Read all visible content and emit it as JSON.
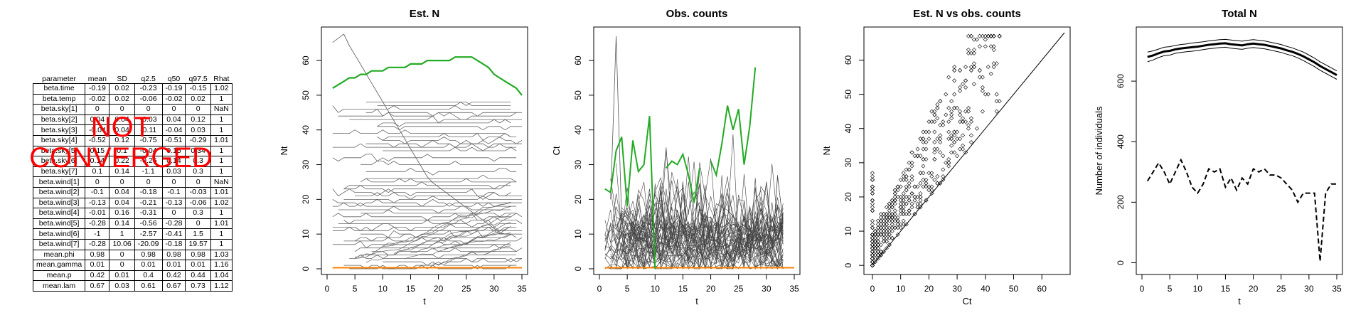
{
  "table": {
    "headers": [
      "parameter",
      "mean",
      "SD",
      "q2.5",
      "q50",
      "q97.5",
      "Rhat"
    ],
    "rows": [
      [
        "beta.time",
        "-0.19",
        "0.02",
        "-0.23",
        "-0.19",
        "-0.15",
        "1.02"
      ],
      [
        "beta.temp",
        "-0.02",
        "0.02",
        "-0.06",
        "-0.02",
        "0.02",
        "1"
      ],
      [
        "beta.sky[1]",
        "0",
        "0",
        "0",
        "0",
        "0",
        "NaN"
      ],
      [
        "beta.sky[2]",
        "0.04",
        "0.04",
        "-0.03",
        "0.04",
        "0.12",
        "1"
      ],
      [
        "beta.sky[3]",
        "-0.04",
        "0.04",
        "-0.11",
        "-0.04",
        "0.03",
        "1"
      ],
      [
        "beta.sky[4]",
        "-0.52",
        "0.12",
        "-0.75",
        "-0.51",
        "-0.29",
        "1.01"
      ],
      [
        "beta.sky[5]",
        "0.15",
        "0.1",
        "-0.04",
        "0.15",
        "0.34",
        "1"
      ],
      [
        "beta.sky[6]",
        "0.14",
        "0.22",
        "-0.25",
        "0.14",
        "0.3",
        "1"
      ],
      [
        "beta.sky[7]",
        "0.1",
        "0.14",
        "-1.1",
        "0.03",
        "0.3",
        "1"
      ],
      [
        "beta.wind[1]",
        "0",
        "0",
        "0",
        "0",
        "0",
        "NaN"
      ],
      [
        "beta.wind[2]",
        "-0.1",
        "0.04",
        "-0.18",
        "-0.1",
        "-0.03",
        "1.01"
      ],
      [
        "beta.wind[3]",
        "-0.13",
        "0.04",
        "-0.21",
        "-0.13",
        "-0.06",
        "1.02"
      ],
      [
        "beta.wind[4]",
        "-0.01",
        "0.16",
        "-0.31",
        "0",
        "0.3",
        "1"
      ],
      [
        "beta.wind[5]",
        "-0.28",
        "0.14",
        "-0.56",
        "-0.28",
        "0",
        "1.01"
      ],
      [
        "beta.wind[6]",
        "-1",
        "1",
        "-2.57",
        "-0.41",
        "1.5",
        "1"
      ],
      [
        "beta.wind[7]",
        "-0.28",
        "10.06",
        "-20.09",
        "-0.18",
        "19.57",
        "1"
      ],
      [
        "mean.phi",
        "0.98",
        "0",
        "0.98",
        "0.98",
        "0.98",
        "1.03"
      ],
      [
        "mean.gamma",
        "0.01",
        "0",
        "0.01",
        "0.01",
        "0.01",
        "1.16"
      ],
      [
        "mean.p",
        "0.42",
        "0.01",
        "0.4",
        "0.42",
        "0.44",
        "1.04"
      ],
      [
        "mean.lam",
        "0.67",
        "0.03",
        "0.61",
        "0.67",
        "0.73",
        "1.12"
      ]
    ],
    "overlay_text": "NOT CONVERGED",
    "overlay_color": "#ff0000"
  },
  "chart_data": [
    {
      "type": "line",
      "title": "Est. N",
      "xlabel": "t",
      "ylabel": "Nt",
      "xlim": [
        0,
        35
      ],
      "ylim": [
        0,
        68
      ],
      "xticks": [
        0,
        5,
        10,
        15,
        20,
        25,
        30,
        35
      ],
      "yticks": [
        0,
        10,
        20,
        30,
        40,
        50,
        60
      ],
      "highlight_color": "#22aa22",
      "zero_color": "#ff8000",
      "series_color": "#666666",
      "highlight": {
        "x": [
          1,
          2,
          3,
          4,
          5,
          6,
          7,
          8,
          9,
          10,
          11,
          12,
          13,
          14,
          15,
          16,
          17,
          18,
          19,
          20,
          21,
          22,
          23,
          24,
          25,
          26,
          27,
          28,
          29,
          30,
          31,
          32,
          33,
          34,
          35
        ],
        "y": [
          52,
          53,
          54,
          55,
          55,
          56,
          56,
          57,
          57,
          57,
          58,
          58,
          58,
          58,
          59,
          59,
          59,
          60,
          60,
          60,
          60,
          60,
          61,
          61,
          61,
          61,
          60,
          59,
          58,
          56,
          55,
          54,
          53,
          52,
          50
        ]
      },
      "flat_levels": [
        48,
        47,
        46,
        45,
        44,
        43,
        42,
        41,
        39,
        38,
        37,
        36,
        35,
        34,
        32,
        30,
        28,
        26,
        25,
        24,
        23,
        22,
        21,
        20,
        19,
        18,
        17,
        16,
        15,
        14,
        13,
        12,
        11,
        10,
        9,
        8,
        7,
        6,
        5,
        4,
        3,
        2,
        1,
        0
      ],
      "decline_peak": 67,
      "decline_start": 1,
      "decline_drop": 24
    },
    {
      "type": "line",
      "title": "Obs. counts",
      "xlabel": "t",
      "ylabel": "Ct",
      "xlim": [
        0,
        35
      ],
      "ylim": [
        0,
        68
      ],
      "xticks": [
        0,
        5,
        10,
        15,
        20,
        25,
        30,
        35
      ],
      "yticks": [
        0,
        10,
        20,
        30,
        40,
        50,
        60
      ],
      "highlight_color": "#22aa22",
      "zero_color": "#ff8000",
      "series_color": "#444444",
      "highlight": {
        "x": [
          1,
          2,
          3,
          4,
          5,
          6,
          7,
          8,
          9,
          null,
          20,
          21,
          22,
          23,
          24,
          25,
          26,
          27,
          28
        ],
        "y": [
          23,
          22,
          34,
          38,
          18,
          37,
          28,
          30,
          44,
          null,
          31,
          27,
          36,
          47,
          40,
          46,
          30,
          41,
          58
        ]
      },
      "highlight_segment2": {
        "x": [
          9,
          10,
          11,
          12,
          13,
          14,
          15,
          16,
          17,
          18,
          19
        ],
        "y": [
          null,
          null,
          null,
          null,
          null,
          null,
          null,
          null,
          null,
          null,
          null
        ]
      },
      "noise_series": 45,
      "noise_max": 45,
      "spike": {
        "x": [
          2,
          3,
          4
        ],
        "y": [
          20,
          67,
          14
        ]
      }
    },
    {
      "type": "scatter",
      "title": "Est. N vs obs. counts",
      "xlabel": "Ct",
      "ylabel": "Nt",
      "xlim": [
        -1,
        68
      ],
      "ylim": [
        -1,
        68
      ],
      "xticks": [
        0,
        10,
        20,
        30,
        40,
        50,
        60
      ],
      "yticks": [
        0,
        10,
        20,
        30,
        40,
        50,
        60
      ],
      "marker": "diamond",
      "identity_line": true,
      "points_note": "dense cloud above 1:1 line"
    },
    {
      "type": "line",
      "title": "Total N",
      "xlabel": "t",
      "ylabel": "Number of individuals",
      "xlim": [
        0,
        35
      ],
      "ylim": [
        -20,
        760
      ],
      "xticks": [
        0,
        5,
        10,
        15,
        20,
        25,
        30,
        35
      ],
      "yticks": [
        0,
        200,
        400,
        600
      ],
      "series": [
        {
          "name": "",
          "style": "thick",
          "x": [
            1,
            2,
            3,
            4,
            5,
            6,
            7,
            8,
            9,
            10,
            11,
            12,
            13,
            14,
            15,
            16,
            17,
            18,
            19,
            20,
            21,
            22,
            23,
            24,
            25,
            26,
            27,
            28,
            29,
            30,
            31,
            32,
            33,
            34,
            35
          ],
          "y": [
            680,
            685,
            692,
            698,
            700,
            705,
            708,
            710,
            712,
            714,
            717,
            720,
            722,
            724,
            725,
            722,
            720,
            718,
            722,
            724,
            722,
            720,
            716,
            712,
            708,
            702,
            697,
            690,
            682,
            672,
            662,
            650,
            640,
            630,
            620
          ]
        },
        {
          "name": "",
          "style": "thin-upper",
          "x": [
            1,
            2,
            3,
            4,
            5,
            6,
            7,
            8,
            9,
            10,
            11,
            12,
            13,
            14,
            15,
            16,
            17,
            18,
            19,
            20,
            21,
            22,
            23,
            24,
            25,
            26,
            27,
            28,
            29,
            30,
            31,
            32,
            33,
            34,
            35
          ],
          "y": [
            696,
            700,
            706,
            712,
            714,
            718,
            721,
            723,
            726,
            728,
            730,
            733,
            735,
            737,
            738,
            736,
            734,
            732,
            735,
            737,
            735,
            733,
            729,
            725,
            721,
            715,
            710,
            703,
            696,
            686,
            676,
            664,
            654,
            644,
            634
          ]
        },
        {
          "name": "",
          "style": "thin-lower",
          "x": [
            1,
            2,
            3,
            4,
            5,
            6,
            7,
            8,
            9,
            10,
            11,
            12,
            13,
            14,
            15,
            16,
            17,
            18,
            19,
            20,
            21,
            22,
            23,
            24,
            25,
            26,
            27,
            28,
            29,
            30,
            31,
            32,
            33,
            34,
            35
          ],
          "y": [
            664,
            670,
            678,
            684,
            686,
            692,
            695,
            697,
            699,
            701,
            704,
            707,
            709,
            711,
            712,
            709,
            707,
            705,
            709,
            711,
            709,
            707,
            703,
            699,
            695,
            689,
            684,
            677,
            668,
            658,
            648,
            636,
            626,
            616,
            606
          ]
        },
        {
          "name": "",
          "style": "dashed",
          "x": [
            1,
            2,
            3,
            4,
            5,
            6,
            7,
            8,
            9,
            10,
            11,
            12,
            13,
            14,
            15,
            16,
            17,
            18,
            19,
            20,
            21,
            22,
            23,
            24,
            25,
            26,
            27,
            28,
            29,
            30,
            31,
            32,
            33,
            34,
            35
          ],
          "y": [
            270,
            300,
            330,
            300,
            260,
            300,
            340,
            300,
            250,
            230,
            260,
            310,
            300,
            310,
            250,
            280,
            240,
            280,
            260,
            310,
            300,
            310,
            290,
            290,
            280,
            260,
            240,
            200,
            230,
            230,
            230,
            5,
            230,
            260,
            260
          ]
        }
      ]
    }
  ]
}
